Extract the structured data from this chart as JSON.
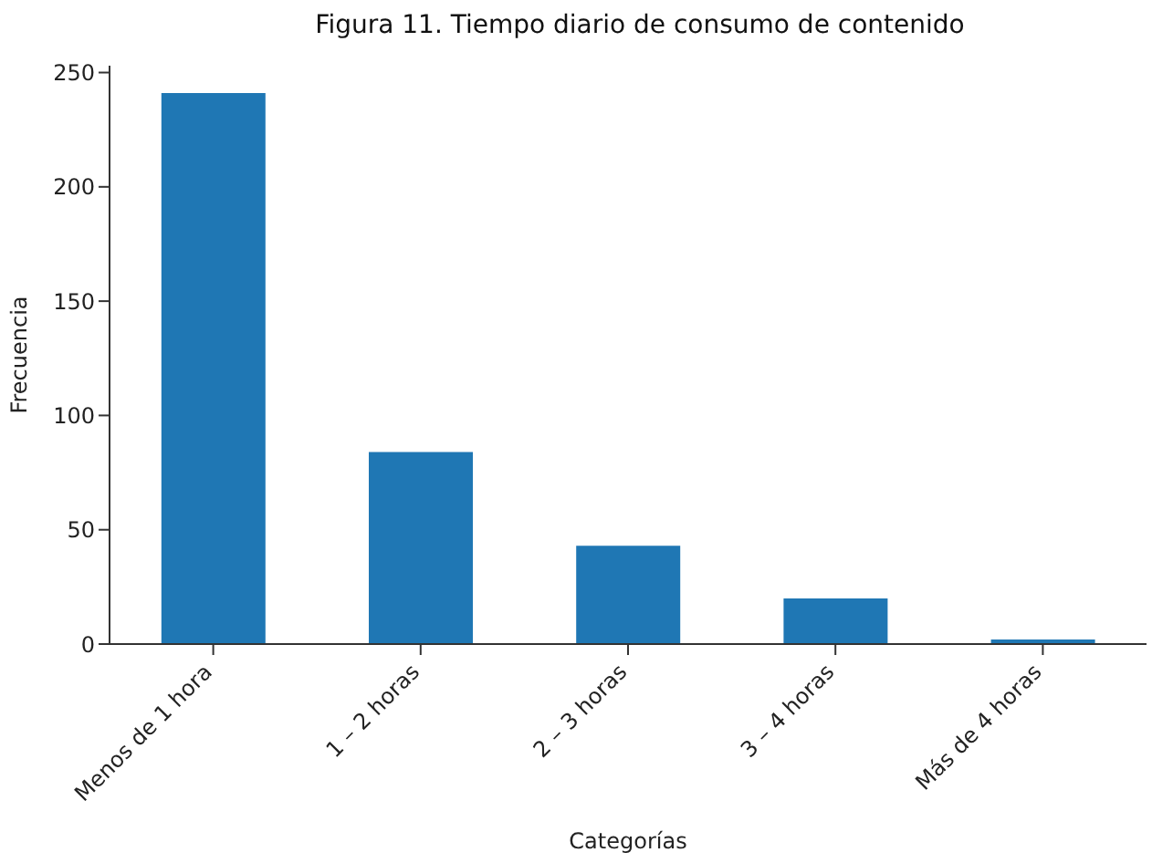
{
  "chart_data": {
    "type": "bar",
    "title": "Figura 11. Tiempo diario de consumo de contenido",
    "xlabel": "Categorías",
    "ylabel": "Frecuencia",
    "categories": [
      "Menos de 1 hora",
      "1 – 2 horas",
      "2 – 3 horas",
      "3 – 4 horas",
      "Más de 4 horas"
    ],
    "values": [
      241,
      84,
      43,
      20,
      2
    ],
    "color": "#1f77b4",
    "ylim": [
      0,
      253
    ],
    "yticks": [
      0,
      50,
      100,
      150,
      200,
      250
    ],
    "grid": false,
    "legend": false
  }
}
